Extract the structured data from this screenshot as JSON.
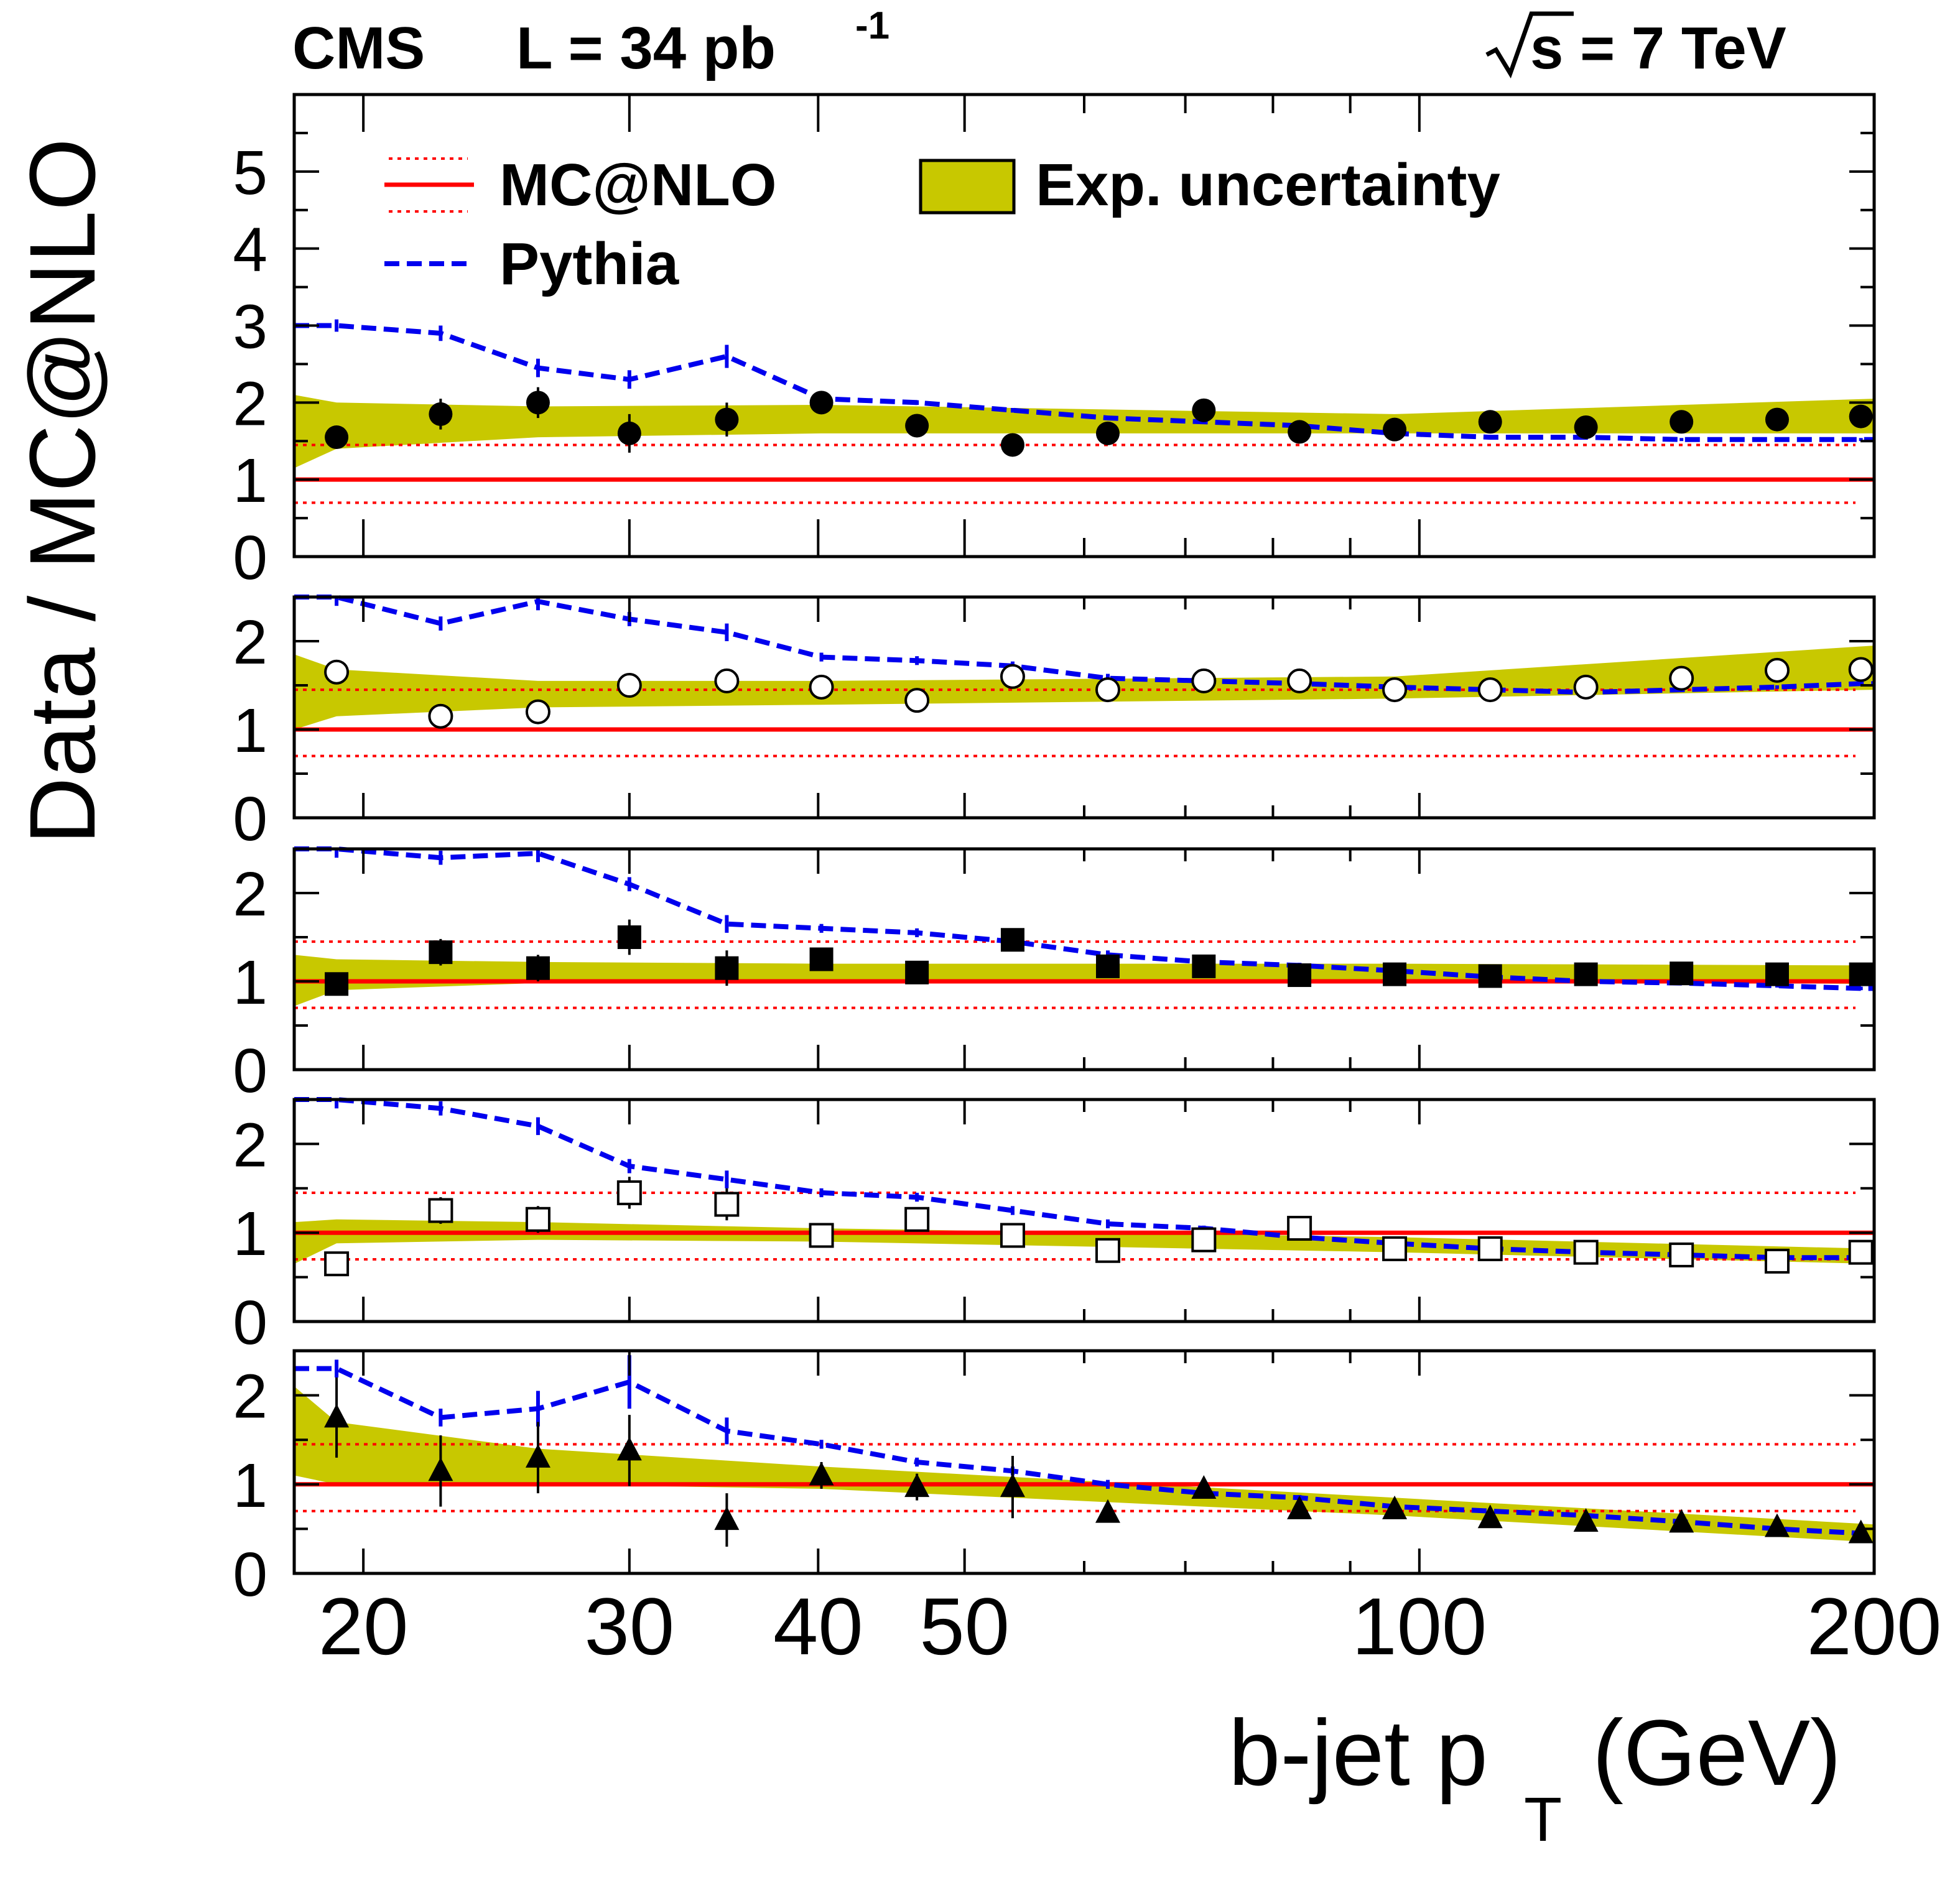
{
  "header": {
    "experiment": "CMS",
    "luminosity": "L = 34 pb",
    "luminosity_sup": "-1",
    "energy": "s = 7 TeV"
  },
  "legend": {
    "mcatnlo": "MC@NLO",
    "pythia": "Pythia",
    "band": "Exp. uncertainty"
  },
  "colors": {
    "band": "#c8c800",
    "mcatnlo": "#ff0000",
    "pythia": "#0000ee",
    "markers": "#000000"
  },
  "chart_data": {
    "type": "scatter",
    "title": "CMS  L = 34 pb-1   sqrt(s) = 7 TeV",
    "xlabel": "b-jet p",
    "xlabel_sub": "T",
    "xlabel_unit": "(GeV)",
    "ylabel": "Data / MC@NLO",
    "x_scale": "log",
    "xlim": [
      18,
      200
    ],
    "x_ticks": [
      20,
      30,
      40,
      50,
      100,
      200
    ],
    "x": [
      19.2,
      22.5,
      26.1,
      30.0,
      34.8,
      40.2,
      46.5,
      53.8,
      62.2,
      72.0,
      83.3,
      96.3,
      111.4,
      128.9,
      149.1,
      172.5,
      196.0
    ],
    "reference": {
      "mcatnlo": 1.0,
      "mcatnlo_uncertainty": [
        0.7,
        1.45
      ]
    },
    "panels": [
      {
        "name": "panel-1",
        "marker": "filled-circle",
        "ylim": [
          0,
          6
        ],
        "y_ticks": [
          0,
          1,
          2,
          3,
          4,
          5
        ],
        "data": [
          1.55,
          1.85,
          2.0,
          1.6,
          1.78,
          2.0,
          1.7,
          1.45,
          1.6,
          1.9,
          1.62,
          1.65,
          1.75,
          1.68,
          1.75,
          1.78,
          1.82
        ],
        "errors": [
          0.15,
          0.2,
          0.2,
          0.25,
          0.22,
          0.1,
          0.12,
          0.12,
          0.12,
          0.1,
          0.1,
          0.1,
          0.1,
          0.1,
          0.1,
          0.1,
          0.1
        ],
        "band_x": [
          18,
          19.2,
          26.1,
          40.2,
          96.3,
          200
        ],
        "band_low": [
          1.15,
          1.4,
          1.55,
          1.6,
          1.6,
          1.6
        ],
        "band_high": [
          2.1,
          2.0,
          1.95,
          1.97,
          1.85,
          2.05
        ],
        "pythia": [
          3.0,
          2.9,
          2.45,
          2.3,
          2.6,
          2.05,
          2.0,
          1.9,
          1.8,
          1.75,
          1.7,
          1.6,
          1.55,
          1.55,
          1.52,
          1.52,
          1.52
        ],
        "pythia_err": [
          0.08,
          0.1,
          0.12,
          0.12,
          0.15,
          0.05,
          0.03,
          0.03,
          0.03,
          0.03,
          0.03,
          0.02,
          0.02,
          0.02,
          0.02,
          0.02,
          0.02
        ]
      },
      {
        "name": "panel-2",
        "marker": "open-circle",
        "ylim": [
          0,
          2.5
        ],
        "y_ticks": [
          0,
          1,
          2
        ],
        "data": [
          1.65,
          1.15,
          1.2,
          1.5,
          1.55,
          1.48,
          1.33,
          1.6,
          1.45,
          1.55,
          1.55,
          1.45,
          1.45,
          1.48,
          1.58,
          1.67,
          1.68
        ],
        "errors": [
          0.1,
          0.05,
          0.08,
          0.1,
          0.12,
          0.05,
          0.05,
          0.1,
          0.05,
          0.05,
          0.05,
          0.05,
          0.05,
          0.05,
          0.05,
          0.05,
          0.05
        ],
        "band_x": [
          18,
          19.2,
          26.1,
          40.2,
          96.3,
          200
        ],
        "band_low": [
          1.0,
          1.15,
          1.25,
          1.28,
          1.35,
          1.45
        ],
        "band_high": [
          1.85,
          1.68,
          1.55,
          1.55,
          1.6,
          1.95
        ],
        "pythia": [
          2.5,
          2.2,
          2.45,
          2.25,
          2.1,
          1.82,
          1.78,
          1.72,
          1.58,
          1.55,
          1.52,
          1.48,
          1.45,
          1.42,
          1.45,
          1.48,
          1.52
        ],
        "pythia_err": [
          0.1,
          0.08,
          0.1,
          0.08,
          0.1,
          0.05,
          0.05,
          0.05,
          0.05,
          0.03,
          0.03,
          0.03,
          0.03,
          0.02,
          0.02,
          0.02,
          0.02
        ]
      },
      {
        "name": "panel-3",
        "marker": "filled-square",
        "ylim": [
          0,
          2.5
        ],
        "y_ticks": [
          0,
          1,
          2
        ],
        "data": [
          0.97,
          1.33,
          1.15,
          1.5,
          1.15,
          1.25,
          1.1,
          1.47,
          1.17,
          1.17,
          1.07,
          1.08,
          1.06,
          1.08,
          1.09,
          1.08,
          1.08
        ],
        "errors": [
          0.12,
          0.15,
          0.15,
          0.2,
          0.2,
          0.1,
          0.08,
          0.12,
          0.08,
          0.06,
          0.05,
          0.05,
          0.04,
          0.04,
          0.04,
          0.04,
          0.04
        ],
        "band_x": [
          18,
          19.2,
          26.1,
          40.2,
          96.3,
          200
        ],
        "band_low": [
          0.72,
          0.9,
          0.98,
          1.0,
          1.02,
          0.97
        ],
        "band_high": [
          1.3,
          1.25,
          1.22,
          1.2,
          1.2,
          1.18
        ],
        "pythia": [
          2.5,
          2.4,
          2.45,
          2.1,
          1.65,
          1.6,
          1.55,
          1.45,
          1.3,
          1.22,
          1.18,
          1.12,
          1.05,
          1.0,
          0.98,
          0.95,
          0.92
        ],
        "pythia_err": [
          0.1,
          0.08,
          0.1,
          0.08,
          0.1,
          0.05,
          0.05,
          0.05,
          0.05,
          0.03,
          0.03,
          0.03,
          0.03,
          0.02,
          0.02,
          0.02,
          0.02
        ]
      },
      {
        "name": "panel-4",
        "marker": "open-square",
        "ylim": [
          0,
          2.5
        ],
        "y_ticks": [
          0,
          1,
          2
        ],
        "data": [
          0.65,
          1.25,
          1.15,
          1.45,
          1.32,
          0.97,
          1.15,
          0.97,
          0.8,
          0.92,
          1.05,
          0.82,
          0.82,
          0.78,
          0.75,
          0.68,
          0.78
        ],
        "errors": [
          0.1,
          0.15,
          0.15,
          0.18,
          0.18,
          0.08,
          0.1,
          0.1,
          0.06,
          0.06,
          0.06,
          0.06,
          0.05,
          0.05,
          0.05,
          0.05,
          0.05
        ],
        "band_x": [
          18,
          19.2,
          26.1,
          40.2,
          96.3,
          200
        ],
        "band_low": [
          0.65,
          0.88,
          0.92,
          0.9,
          0.78,
          0.65
        ],
        "band_high": [
          1.12,
          1.15,
          1.12,
          1.05,
          0.95,
          0.82
        ],
        "pythia": [
          2.5,
          2.4,
          2.2,
          1.75,
          1.6,
          1.45,
          1.4,
          1.25,
          1.1,
          1.05,
          0.95,
          0.88,
          0.82,
          0.78,
          0.75,
          0.72,
          0.72
        ],
        "pythia_err": [
          0.1,
          0.08,
          0.1,
          0.08,
          0.1,
          0.05,
          0.05,
          0.05,
          0.05,
          0.03,
          0.03,
          0.03,
          0.03,
          0.02,
          0.02,
          0.02,
          0.02
        ]
      },
      {
        "name": "panel-5",
        "marker": "filled-triangle",
        "ylim": [
          0,
          2.5
        ],
        "y_ticks": [
          0,
          1,
          2
        ],
        "data": [
          1.75,
          1.15,
          1.3,
          1.38,
          0.6,
          1.1,
          0.97,
          0.97,
          0.68,
          0.95,
          0.72,
          0.72,
          0.62,
          0.58,
          0.57,
          0.52,
          0.45
        ],
        "errors": [
          0.45,
          0.4,
          0.4,
          0.4,
          0.3,
          0.15,
          0.15,
          0.35,
          0.05,
          0.05,
          0.05,
          0.05,
          0.04,
          0.04,
          0.04,
          0.04,
          0.04
        ],
        "band_x": [
          18,
          19.2,
          26.1,
          40.2,
          96.3,
          200
        ],
        "band_low": [
          1.1,
          1.0,
          1.0,
          0.95,
          0.65,
          0.35
        ],
        "band_high": [
          2.1,
          1.7,
          1.4,
          1.2,
          0.85,
          0.55
        ],
        "pythia": [
          2.3,
          1.75,
          1.85,
          2.15,
          1.6,
          1.45,
          1.25,
          1.15,
          1.0,
          0.9,
          0.85,
          0.75,
          0.7,
          0.65,
          0.58,
          0.5,
          0.45
        ],
        "pythia_err": [
          0.1,
          0.1,
          0.2,
          0.3,
          0.15,
          0.05,
          0.05,
          0.05,
          0.05,
          0.03,
          0.03,
          0.03,
          0.03,
          0.02,
          0.02,
          0.02,
          0.02
        ]
      }
    ]
  }
}
